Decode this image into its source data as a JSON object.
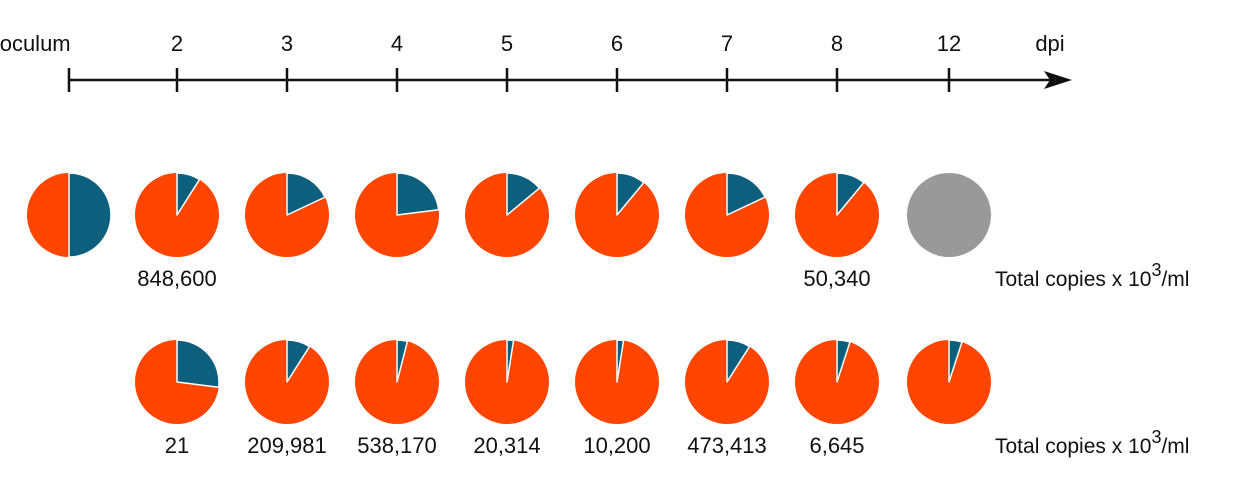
{
  "chart_data": {
    "type": "pie",
    "timeline": {
      "tick_labels": [
        "Inoculum",
        "2",
        "3",
        "4",
        "5",
        "6",
        "7",
        "8",
        "12"
      ],
      "axis_unit": "dpi"
    },
    "colors": {
      "major": "#ff4500",
      "minor": "#0d5f7e",
      "no_data": "#999999"
    },
    "rows": [
      {
        "pies": [
          {
            "tick": "Inoculum",
            "minor_fraction": 0.5
          },
          {
            "tick": "2",
            "minor_fraction": 0.09
          },
          {
            "tick": "3",
            "minor_fraction": 0.18
          },
          {
            "tick": "4",
            "minor_fraction": 0.23
          },
          {
            "tick": "5",
            "minor_fraction": 0.14
          },
          {
            "tick": "6",
            "minor_fraction": 0.11
          },
          {
            "tick": "7",
            "minor_fraction": 0.18
          },
          {
            "tick": "8",
            "minor_fraction": 0.11
          },
          {
            "tick": "12",
            "minor_fraction": null
          }
        ],
        "copies": [
          {
            "tick": "2",
            "text": "848,600"
          },
          {
            "tick": "8",
            "text": "50,340"
          }
        ],
        "unit": {
          "prefix": "Total copies x 10",
          "exponent": "3",
          "suffix": "/ml"
        }
      },
      {
        "pies": [
          {
            "tick": "2",
            "minor_fraction": 0.27
          },
          {
            "tick": "3",
            "minor_fraction": 0.09
          },
          {
            "tick": "4",
            "minor_fraction": 0.04
          },
          {
            "tick": "5",
            "minor_fraction": 0.025
          },
          {
            "tick": "6",
            "minor_fraction": 0.025
          },
          {
            "tick": "7",
            "minor_fraction": 0.09
          },
          {
            "tick": "8",
            "minor_fraction": 0.05
          },
          {
            "tick": "12",
            "minor_fraction": 0.05
          }
        ],
        "copies": [
          {
            "tick": "2",
            "text": "21"
          },
          {
            "tick": "3",
            "text": "209,981"
          },
          {
            "tick": "4",
            "text": "538,170"
          },
          {
            "tick": "5",
            "text": "20,314"
          },
          {
            "tick": "6",
            "text": "10,200"
          },
          {
            "tick": "7",
            "text": "473,413"
          },
          {
            "tick": "8",
            "text": "6,645"
          }
        ],
        "unit": {
          "prefix": "Total copies x 10",
          "exponent": "3",
          "suffix": "/ml"
        }
      }
    ]
  }
}
